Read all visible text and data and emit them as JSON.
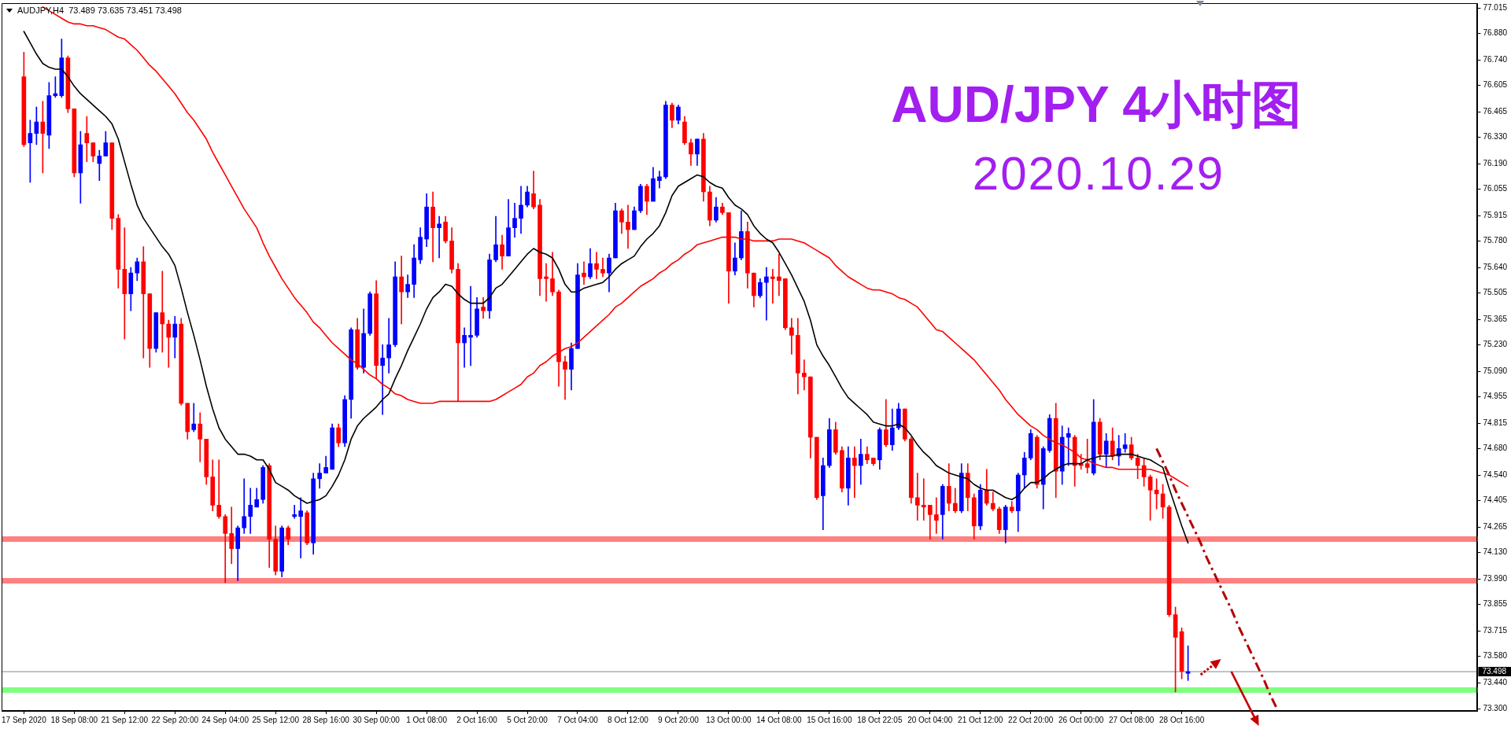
{
  "chart_data": {
    "type": "candlestick",
    "title": "AUD/JPY 4小时图",
    "subtitle": "2020.10.29",
    "annotations": [
      "AUDJPY,H4  73.489 73.635 73.451 73.498"
    ],
    "categories": [
      "17 Sep 2020",
      null,
      null,
      null,
      null,
      null,
      null,
      null,
      "18 Sep 08:00",
      null,
      null,
      null,
      null,
      null,
      null,
      null,
      "21 Sep 12:00",
      null,
      null,
      null,
      null,
      null,
      null,
      null,
      "22 Sep 20:00",
      null,
      null,
      null,
      null,
      null,
      null,
      null,
      "24 Sep 04:00",
      null,
      null,
      null,
      null,
      null,
      null,
      null,
      "25 Sep 12:00",
      null,
      null,
      null,
      null,
      null,
      null,
      null,
      "28 Sep 16:00",
      null,
      null,
      null,
      null,
      null,
      null,
      null,
      "30 Sep 00:00",
      null,
      null,
      null,
      null,
      null,
      null,
      null,
      "1 Oct 08:00",
      null,
      null,
      null,
      null,
      null,
      null,
      null,
      "2 Oct 16:00",
      null,
      null,
      null,
      null,
      null,
      null,
      null,
      "5 Oct 20:00",
      null,
      null,
      null,
      null,
      null,
      null,
      null,
      "7 Oct 04:00",
      null,
      null,
      null,
      null,
      null,
      null,
      null,
      "8 Oct 12:00",
      null,
      null,
      null,
      null,
      null,
      null,
      null,
      "9 Oct 20:00",
      null,
      null,
      null,
      null,
      null,
      null,
      null,
      "13 Oct 00:00",
      null,
      null,
      null,
      null,
      null,
      null,
      null,
      "14 Oct 08:00",
      null,
      null,
      null,
      null,
      null,
      null,
      null,
      "15 Oct 16:00",
      null,
      null,
      null,
      null,
      null,
      null,
      null,
      "18 Oct 22:05",
      null,
      null,
      null,
      null,
      null,
      null,
      null,
      "20 Oct 04:00",
      null,
      null,
      null,
      null,
      null,
      null,
      null,
      "21 Oct 12:00",
      null,
      null,
      null,
      null,
      null,
      null,
      null,
      "22 Oct 20:00",
      null,
      null,
      null,
      null,
      null,
      null,
      null,
      "26 Oct 00:00",
      null,
      null,
      null,
      null,
      null,
      null,
      null,
      "27 Oct 08:00",
      null,
      null,
      null,
      null,
      null,
      null,
      null,
      "28 Oct 16:00",
      null,
      null,
      null,
      null,
      null,
      null,
      null,
      null,
      null,
      null,
      null,
      null,
      null,
      null,
      null
    ],
    "ohlc": [
      [
        76.65,
        76.78,
        76.28,
        76.29
      ],
      [
        76.3,
        76.42,
        76.09,
        76.35
      ],
      [
        76.35,
        76.49,
        76.29,
        76.41
      ],
      [
        76.41,
        76.52,
        76.14,
        76.35
      ],
      [
        76.34,
        76.62,
        76.27,
        76.55
      ],
      [
        76.55,
        76.65,
        76.54,
        76.56
      ],
      [
        76.55,
        76.85,
        76.54,
        76.75
      ],
      [
        76.75,
        76.76,
        76.46,
        76.48
      ],
      [
        76.48,
        76.48,
        76.12,
        76.14
      ],
      [
        76.14,
        76.36,
        75.98,
        76.29
      ],
      [
        76.35,
        76.44,
        76.2,
        76.3
      ],
      [
        76.3,
        76.3,
        76.2,
        76.23
      ],
      [
        76.19,
        76.26,
        76.1,
        76.23
      ],
      [
        76.23,
        76.36,
        76.23,
        76.3
      ],
      [
        76.3,
        76.3,
        75.84,
        75.9
      ],
      [
        75.9,
        75.92,
        75.53,
        75.63
      ],
      [
        75.63,
        75.85,
        75.26,
        75.5
      ],
      [
        75.5,
        75.64,
        75.41,
        75.61
      ],
      [
        75.61,
        75.69,
        75.57,
        75.67
      ],
      [
        75.67,
        75.75,
        75.16,
        75.5
      ],
      [
        75.5,
        75.5,
        75.11,
        75.21
      ],
      [
        75.21,
        75.4,
        75.19,
        75.4
      ],
      [
        75.4,
        75.62,
        75.19,
        75.34
      ],
      [
        75.34,
        75.36,
        75.11,
        75.27
      ],
      [
        75.27,
        75.38,
        75.16,
        75.34
      ],
      [
        75.34,
        75.37,
        74.91,
        74.92
      ],
      [
        74.92,
        74.92,
        74.73,
        74.77
      ],
      [
        74.78,
        74.92,
        74.77,
        74.81
      ],
      [
        74.81,
        74.87,
        74.61,
        74.73
      ],
      [
        74.73,
        74.73,
        74.49,
        74.53
      ],
      [
        74.53,
        74.62,
        74.35,
        74.38
      ],
      [
        74.38,
        74.62,
        74.31,
        74.32
      ],
      [
        74.32,
        74.33,
        73.97,
        74.23
      ],
      [
        74.23,
        74.37,
        74.07,
        74.15
      ],
      [
        74.15,
        74.27,
        73.98,
        74.26
      ],
      [
        74.26,
        74.52,
        74.23,
        74.32
      ],
      [
        74.32,
        74.47,
        74.23,
        74.38
      ],
      [
        74.37,
        74.47,
        74.37,
        74.41
      ],
      [
        74.41,
        74.59,
        74.39,
        74.58
      ],
      [
        74.59,
        74.6,
        74.05,
        74.2
      ],
      [
        74.2,
        74.27,
        74.01,
        74.03
      ],
      [
        74.03,
        74.27,
        74.0,
        74.26
      ],
      [
        74.26,
        74.27,
        74.17,
        74.2
      ],
      [
        74.32,
        74.38,
        74.31,
        74.33
      ],
      [
        74.32,
        74.42,
        74.1,
        74.35
      ],
      [
        74.34,
        74.35,
        74.17,
        74.18
      ],
      [
        74.18,
        74.55,
        74.12,
        74.52
      ],
      [
        74.52,
        74.6,
        74.47,
        74.55
      ],
      [
        74.55,
        74.64,
        74.55,
        74.58
      ],
      [
        74.57,
        74.81,
        74.57,
        74.79
      ],
      [
        74.79,
        74.81,
        74.69,
        74.71
      ],
      [
        74.71,
        74.96,
        74.69,
        74.94
      ],
      [
        74.94,
        75.32,
        74.84,
        75.31
      ],
      [
        75.31,
        75.37,
        75.1,
        75.11
      ],
      [
        75.11,
        75.42,
        75.08,
        75.29
      ],
      [
        75.29,
        75.51,
        75.28,
        75.5
      ],
      [
        75.5,
        75.57,
        75.05,
        75.12
      ],
      [
        75.12,
        75.23,
        74.86,
        75.16
      ],
      [
        75.16,
        75.37,
        75.08,
        75.23
      ],
      [
        75.23,
        75.67,
        75.22,
        75.59
      ],
      [
        75.59,
        75.7,
        75.34,
        75.51
      ],
      [
        75.51,
        75.6,
        75.48,
        75.55
      ],
      [
        75.55,
        75.76,
        75.48,
        75.69
      ],
      [
        75.68,
        75.85,
        75.66,
        75.8
      ],
      [
        75.79,
        76.03,
        75.75,
        75.96
      ],
      [
        75.96,
        76.04,
        75.67,
        75.85
      ],
      [
        75.85,
        75.91,
        75.69,
        75.87
      ],
      [
        75.88,
        75.91,
        75.77,
        75.78
      ],
      [
        75.78,
        75.85,
        75.61,
        75.63
      ],
      [
        75.63,
        75.66,
        74.93,
        75.24
      ],
      [
        75.24,
        75.32,
        75.11,
        75.28
      ],
      [
        75.27,
        75.54,
        75.12,
        75.28
      ],
      [
        75.28,
        75.48,
        75.27,
        75.42
      ],
      [
        75.43,
        75.48,
        75.37,
        75.41
      ],
      [
        75.41,
        75.71,
        75.37,
        75.68
      ],
      [
        75.68,
        75.91,
        75.67,
        75.76
      ],
      [
        75.76,
        75.81,
        75.63,
        75.7
      ],
      [
        75.7,
        76.0,
        75.7,
        75.85
      ],
      [
        75.85,
        75.98,
        75.8,
        75.9
      ],
      [
        75.9,
        76.07,
        75.82,
        75.97
      ],
      [
        75.97,
        76.07,
        75.96,
        76.04
      ],
      [
        76.03,
        76.15,
        75.95,
        75.96
      ],
      [
        75.97,
        76.0,
        75.49,
        75.58
      ],
      [
        75.59,
        75.66,
        75.46,
        75.58
      ],
      [
        75.58,
        75.72,
        75.49,
        75.51
      ],
      [
        75.51,
        75.52,
        75.01,
        75.14
      ],
      [
        75.14,
        75.17,
        74.94,
        75.1
      ],
      [
        75.1,
        75.24,
        74.99,
        75.21
      ],
      [
        75.21,
        75.66,
        75.21,
        75.6
      ],
      [
        75.61,
        75.67,
        75.55,
        75.59
      ],
      [
        75.59,
        75.74,
        75.58,
        75.66
      ],
      [
        75.66,
        75.72,
        75.58,
        75.63
      ],
      [
        75.63,
        75.69,
        75.59,
        75.61
      ],
      [
        75.61,
        75.71,
        75.51,
        75.69
      ],
      [
        75.69,
        75.98,
        75.69,
        75.94
      ],
      [
        75.94,
        75.95,
        75.82,
        75.88
      ],
      [
        75.88,
        75.97,
        75.74,
        75.84
      ],
      [
        75.84,
        75.96,
        75.84,
        75.94
      ],
      [
        75.94,
        76.08,
        75.93,
        76.07
      ],
      [
        76.07,
        76.08,
        75.92,
        75.99
      ],
      [
        75.99,
        76.17,
        75.99,
        76.11
      ],
      [
        76.1,
        76.15,
        76.06,
        76.12
      ],
      [
        76.12,
        76.52,
        76.11,
        76.5
      ],
      [
        76.5,
        76.51,
        76.38,
        76.42
      ],
      [
        76.42,
        76.5,
        76.4,
        76.49
      ],
      [
        76.41,
        76.44,
        76.29,
        76.3
      ],
      [
        76.3,
        76.32,
        76.18,
        76.24
      ],
      [
        76.24,
        76.32,
        76.18,
        76.32
      ],
      [
        76.32,
        76.35,
        75.99,
        76.04
      ],
      [
        76.04,
        76.07,
        75.86,
        75.89
      ],
      [
        75.89,
        76.01,
        75.88,
        75.96
      ],
      [
        75.96,
        75.98,
        75.92,
        75.93
      ],
      [
        75.93,
        75.93,
        75.45,
        75.62
      ],
      [
        75.62,
        75.77,
        75.6,
        75.69
      ],
      [
        75.69,
        75.94,
        75.68,
        75.83
      ],
      [
        75.83,
        75.88,
        75.53,
        75.61
      ],
      [
        75.61,
        75.61,
        75.43,
        75.49
      ],
      [
        75.49,
        75.58,
        75.48,
        75.56
      ],
      [
        75.56,
        75.64,
        75.36,
        75.59
      ],
      [
        75.59,
        75.63,
        75.45,
        75.58
      ],
      [
        75.59,
        75.71,
        75.49,
        75.57
      ],
      [
        75.58,
        75.58,
        75.31,
        75.32
      ],
      [
        75.32,
        75.37,
        75.18,
        75.28
      ],
      [
        75.28,
        75.37,
        74.97,
        75.08
      ],
      [
        75.08,
        75.15,
        74.99,
        75.06
      ],
      [
        75.06,
        75.06,
        74.63,
        74.74
      ],
      [
        74.74,
        74.74,
        74.41,
        74.42
      ],
      [
        74.43,
        74.63,
        74.25,
        74.59
      ],
      [
        74.59,
        74.84,
        74.58,
        74.78
      ],
      [
        74.78,
        74.82,
        74.65,
        74.66
      ],
      [
        74.67,
        74.69,
        74.45,
        74.47
      ],
      [
        74.47,
        74.69,
        74.38,
        74.63
      ],
      [
        74.63,
        74.69,
        74.42,
        74.59
      ],
      [
        74.59,
        74.73,
        74.49,
        74.65
      ],
      [
        74.65,
        74.69,
        74.6,
        74.62
      ],
      [
        74.63,
        74.63,
        74.59,
        74.6
      ],
      [
        74.62,
        74.79,
        74.57,
        74.78
      ],
      [
        74.78,
        74.94,
        74.69,
        74.7
      ],
      [
        74.7,
        74.89,
        74.67,
        74.79
      ],
      [
        74.79,
        74.92,
        74.78,
        74.89
      ],
      [
        74.89,
        74.89,
        74.72,
        74.73
      ],
      [
        74.73,
        74.74,
        74.39,
        74.42
      ],
      [
        74.42,
        74.55,
        74.3,
        74.38
      ],
      [
        74.38,
        74.52,
        74.3,
        74.37
      ],
      [
        74.38,
        74.38,
        74.2,
        74.33
      ],
      [
        74.33,
        74.42,
        74.23,
        74.3
      ],
      [
        74.33,
        74.49,
        74.2,
        74.48
      ],
      [
        74.48,
        74.6,
        74.35,
        74.39
      ],
      [
        74.39,
        74.47,
        74.34,
        74.35
      ],
      [
        74.35,
        74.6,
        74.34,
        74.55
      ],
      [
        74.55,
        74.6,
        74.35,
        74.42
      ],
      [
        74.42,
        74.44,
        74.2,
        74.27
      ],
      [
        74.27,
        74.49,
        74.25,
        74.46
      ],
      [
        74.46,
        74.57,
        74.38,
        74.39
      ],
      [
        74.39,
        74.45,
        74.35,
        74.36
      ],
      [
        74.36,
        74.37,
        74.23,
        74.25
      ],
      [
        74.25,
        74.38,
        74.18,
        74.37
      ],
      [
        74.37,
        74.4,
        74.34,
        74.35
      ],
      [
        74.35,
        74.55,
        74.24,
        74.54
      ],
      [
        74.54,
        74.66,
        74.47,
        74.63
      ],
      [
        74.63,
        74.78,
        74.62,
        74.76
      ],
      [
        74.74,
        74.75,
        74.47,
        74.49
      ],
      [
        74.49,
        74.69,
        74.36,
        74.68
      ],
      [
        74.67,
        74.86,
        74.66,
        74.84
      ],
      [
        74.84,
        74.92,
        74.42,
        74.56
      ],
      [
        74.56,
        74.8,
        74.49,
        74.74
      ],
      [
        74.74,
        74.79,
        74.59,
        74.76
      ],
      [
        74.74,
        74.75,
        74.48,
        74.59
      ],
      [
        74.6,
        74.65,
        74.57,
        74.59
      ],
      [
        74.6,
        74.73,
        74.55,
        74.58
      ],
      [
        74.55,
        74.94,
        74.54,
        74.82
      ],
      [
        74.82,
        74.84,
        74.62,
        74.65
      ],
      [
        74.65,
        74.76,
        74.58,
        74.72
      ],
      [
        74.72,
        74.79,
        74.62,
        74.64
      ],
      [
        74.64,
        74.75,
        74.59,
        74.68
      ],
      [
        74.68,
        74.76,
        74.66,
        74.7
      ],
      [
        74.7,
        74.74,
        74.62,
        74.63
      ],
      [
        74.63,
        74.65,
        74.52,
        74.59
      ],
      [
        74.59,
        74.63,
        74.48,
        74.53
      ],
      [
        74.53,
        74.54,
        74.3,
        74.46
      ],
      [
        74.46,
        74.52,
        74.36,
        74.44
      ],
      [
        74.44,
        74.49,
        74.31,
        74.37
      ],
      [
        74.37,
        74.38,
        73.79,
        73.8
      ],
      [
        73.8,
        73.84,
        73.39,
        73.68
      ],
      [
        73.71,
        73.73,
        73.46,
        73.5
      ],
      [
        73.489,
        73.635,
        73.451,
        73.498
      ],
      null,
      null,
      null,
      null,
      null,
      null,
      null,
      null,
      null,
      null,
      null,
      null,
      null,
      null
    ],
    "colors": [
      "#ff0000",
      "#0000ff",
      "#0000ff",
      "#ff0000",
      "#0000ff",
      "#0000ff",
      "#0000ff",
      "#ff0000",
      "#ff0000",
      "#0000ff",
      "#ff0000",
      "#ff0000",
      "#0000ff",
      "#0000ff",
      "#ff0000",
      "#ff0000",
      "#ff0000",
      "#0000ff",
      "#0000ff",
      "#ff0000",
      "#ff0000",
      "#0000ff",
      "#ff0000",
      "#ff0000",
      "#0000ff",
      "#ff0000",
      "#ff0000",
      "#0000ff",
      "#ff0000",
      "#ff0000",
      "#ff0000",
      "#ff0000",
      "#ff0000",
      "#ff0000",
      "#0000ff",
      "#0000ff",
      "#0000ff",
      "#0000ff",
      "#0000ff",
      "#ff0000",
      "#ff0000",
      "#0000ff",
      "#ff0000",
      "#0000ff",
      "#0000ff",
      "#ff0000",
      "#0000ff",
      "#0000ff",
      "#0000ff",
      "#0000ff",
      "#ff0000",
      "#0000ff",
      "#0000ff",
      "#ff0000",
      "#0000ff",
      "#0000ff",
      "#ff0000",
      "#0000ff",
      "#0000ff",
      "#0000ff",
      "#ff0000",
      "#0000ff",
      "#0000ff",
      "#0000ff",
      "#0000ff",
      "#ff0000",
      "#0000ff",
      "#ff0000",
      "#ff0000",
      "#ff0000",
      "#0000ff",
      "#0000ff",
      "#0000ff",
      "#ff0000",
      "#0000ff",
      "#0000ff",
      "#ff0000",
      "#0000ff",
      "#0000ff",
      "#0000ff",
      "#0000ff",
      "#ff0000",
      "#ff0000",
      "#ff0000",
      "#ff0000",
      "#ff0000",
      "#ff0000",
      "#0000ff",
      "#0000ff",
      "#ff0000",
      "#0000ff",
      "#ff0000",
      "#ff0000",
      "#0000ff",
      "#0000ff",
      "#ff0000",
      "#ff0000",
      "#0000ff",
      "#0000ff",
      "#ff0000",
      "#0000ff",
      "#0000ff",
      "#0000ff",
      "#ff0000",
      "#0000ff",
      "#ff0000",
      "#ff0000",
      "#0000ff",
      "#ff0000",
      "#ff0000",
      "#0000ff",
      "#ff0000",
      "#ff0000",
      "#0000ff",
      "#0000ff",
      "#ff0000",
      "#ff0000",
      "#0000ff",
      "#0000ff",
      "#ff0000",
      "#ff0000",
      "#ff0000",
      "#ff0000",
      "#ff0000",
      "#ff0000",
      "#ff0000",
      "#ff0000",
      "#0000ff",
      "#0000ff",
      "#ff0000",
      "#ff0000",
      "#0000ff",
      "#ff0000",
      "#0000ff",
      "#ff0000",
      "#ff0000",
      "#0000ff",
      "#ff0000",
      "#0000ff",
      "#0000ff",
      "#ff0000",
      "#ff0000",
      "#ff0000",
      "#ff0000",
      "#ff0000",
      "#ff0000",
      "#0000ff",
      "#ff0000",
      "#ff0000",
      "#0000ff",
      "#ff0000",
      "#ff0000",
      "#0000ff",
      "#ff0000",
      "#ff0000",
      "#ff0000",
      "#0000ff",
      "#ff0000",
      "#0000ff",
      "#0000ff",
      "#0000ff",
      "#ff0000",
      "#0000ff",
      "#0000ff",
      "#ff0000",
      "#0000ff",
      "#0000ff",
      "#ff0000",
      "#ff0000",
      "#ff0000",
      "#0000ff",
      "#ff0000",
      "#0000ff",
      "#ff0000",
      "#0000ff",
      "#0000ff",
      "#ff0000",
      "#ff0000",
      "#ff0000",
      "#ff0000",
      "#ff0000",
      "#ff0000",
      "#ff0000",
      "#ff0000",
      "#ff0000",
      "#0000ff",
      null,
      null,
      null,
      null,
      null,
      null,
      null,
      null,
      null,
      null,
      null,
      null,
      null,
      null
    ],
    "series": [
      {
        "type": "line",
        "color": "#000000",
        "values": [
          76.89,
          76.83,
          76.77,
          76.72,
          76.7,
          76.69,
          76.69,
          76.65,
          76.6,
          76.56,
          76.53,
          76.5,
          76.47,
          76.44,
          76.4,
          76.32,
          76.2,
          76.08,
          75.97,
          75.9,
          75.85,
          75.8,
          75.75,
          75.71,
          75.65,
          75.53,
          75.4,
          75.28,
          75.15,
          75.01,
          74.89,
          74.79,
          74.73,
          74.69,
          74.65,
          74.65,
          74.64,
          74.62,
          74.62,
          74.57,
          74.5,
          74.48,
          74.46,
          74.43,
          74.41,
          74.39,
          74.4,
          74.41,
          74.43,
          74.48,
          74.54,
          74.62,
          74.73,
          74.8,
          74.84,
          74.87,
          74.9,
          74.94,
          74.97,
          75.05,
          75.12,
          75.2,
          75.27,
          75.34,
          75.42,
          75.48,
          75.51,
          75.55,
          75.54,
          75.5,
          75.47,
          75.45,
          75.45,
          75.45,
          75.48,
          75.53,
          75.55,
          75.59,
          75.63,
          75.67,
          75.71,
          75.74,
          75.72,
          75.71,
          75.69,
          75.63,
          75.55,
          75.51,
          75.51,
          75.53,
          75.54,
          75.55,
          75.56,
          75.59,
          75.63,
          75.66,
          75.68,
          75.7,
          75.75,
          75.79,
          75.82,
          75.86,
          75.93,
          76.02,
          76.07,
          76.09,
          76.11,
          76.13,
          76.12,
          76.09,
          76.07,
          76.06,
          76.01,
          75.97,
          75.95,
          75.92,
          75.86,
          75.82,
          75.79,
          75.77,
          75.72,
          75.66,
          75.6,
          75.53,
          75.46,
          75.36,
          75.23,
          75.17,
          75.12,
          75.06,
          75.0,
          74.95,
          74.92,
          74.89,
          74.86,
          74.82,
          74.81,
          74.8,
          74.8,
          74.81,
          74.79,
          74.75,
          74.7,
          74.66,
          74.63,
          74.59,
          74.57,
          74.55,
          74.54,
          74.53,
          74.52,
          74.49,
          74.47,
          74.46,
          74.46,
          74.44,
          74.42,
          74.41,
          74.43,
          74.47,
          74.5,
          74.5,
          74.52,
          74.55,
          74.57,
          74.59,
          74.6,
          74.6,
          74.6,
          74.62,
          74.63,
          74.64,
          74.64,
          74.64,
          74.65,
          74.65,
          74.65,
          74.64,
          74.63,
          74.62,
          74.6,
          74.58,
          74.47,
          74.37,
          74.27,
          74.18,
          null,
          null,
          null,
          null,
          null,
          null,
          null,
          null,
          null,
          null,
          null,
          null,
          null,
          null
        ]
      },
      {
        "type": "line",
        "color": "#ff0000",
        "values": [
          null,
          null,
          null,
          77.02,
          77.0,
          76.98,
          76.96,
          76.94,
          76.93,
          76.93,
          76.92,
          76.92,
          76.91,
          76.9,
          76.88,
          76.86,
          76.85,
          76.82,
          76.79,
          76.75,
          76.71,
          76.68,
          76.64,
          76.6,
          76.56,
          76.51,
          76.46,
          76.42,
          76.37,
          76.32,
          76.25,
          76.19,
          76.13,
          76.07,
          76.01,
          75.95,
          75.9,
          75.85,
          75.77,
          75.7,
          75.64,
          75.58,
          75.53,
          75.48,
          75.44,
          75.4,
          75.35,
          75.32,
          75.28,
          75.24,
          75.21,
          75.18,
          75.15,
          75.13,
          75.1,
          75.07,
          75.05,
          75.02,
          75.0,
          74.97,
          74.96,
          74.94,
          74.93,
          74.92,
          74.92,
          74.92,
          74.93,
          74.93,
          74.93,
          74.93,
          74.93,
          74.93,
          74.93,
          74.93,
          74.93,
          74.94,
          74.96,
          74.98,
          75.0,
          75.02,
          75.06,
          75.08,
          75.12,
          75.14,
          75.17,
          75.19,
          75.21,
          75.22,
          75.24,
          75.27,
          75.3,
          75.33,
          75.36,
          75.39,
          75.43,
          75.45,
          75.48,
          75.51,
          75.54,
          75.56,
          75.58,
          75.61,
          75.63,
          75.66,
          75.68,
          75.71,
          75.73,
          75.76,
          75.77,
          75.78,
          75.79,
          75.8,
          75.8,
          75.8,
          75.79,
          75.79,
          75.78,
          75.78,
          75.78,
          75.78,
          75.79,
          75.79,
          75.79,
          75.78,
          75.77,
          75.75,
          75.73,
          75.71,
          75.69,
          75.65,
          75.62,
          75.59,
          75.57,
          75.55,
          75.53,
          75.52,
          75.52,
          75.51,
          75.5,
          75.48,
          75.47,
          75.45,
          75.43,
          75.39,
          75.35,
          75.31,
          75.3,
          75.27,
          75.24,
          75.21,
          75.18,
          75.15,
          75.11,
          75.07,
          75.03,
          74.99,
          74.94,
          74.9,
          74.86,
          74.83,
          74.8,
          74.78,
          74.75,
          74.73,
          74.71,
          74.7,
          74.68,
          74.66,
          74.63,
          74.62,
          74.6,
          74.59,
          74.58,
          74.58,
          74.57,
          74.57,
          74.57,
          74.57,
          74.57,
          74.57,
          74.56,
          74.55,
          74.54,
          74.52,
          74.5,
          74.48,
          null,
          null,
          null,
          null,
          null,
          null,
          null,
          null,
          null,
          null,
          null,
          null,
          null,
          null
        ]
      },
      {
        "type": "line",
        "color": "#b40000",
        "line_style": "dashed",
        "values": [
          null,
          null,
          null,
          null,
          null,
          null,
          null,
          null,
          null,
          null,
          null,
          null,
          null,
          null,
          null,
          null,
          null,
          null,
          null,
          null,
          null,
          null,
          null,
          null,
          null,
          null,
          null,
          null,
          null,
          null,
          null,
          null,
          null,
          null,
          null,
          null,
          null,
          null,
          null,
          null,
          null,
          null,
          null,
          null,
          null,
          null,
          null,
          null,
          null,
          null,
          null,
          null,
          null,
          null,
          null,
          null,
          null,
          null,
          null,
          null,
          null,
          null,
          null,
          null,
          null,
          null,
          null,
          null,
          null,
          null,
          null,
          null,
          null,
          null,
          null,
          null,
          null,
          null,
          null,
          null,
          null,
          null,
          null,
          null,
          null,
          null,
          null,
          null,
          null,
          null,
          null,
          null,
          null,
          null,
          null,
          null,
          null,
          null,
          null,
          null,
          null,
          null,
          null,
          null,
          null,
          null,
          null,
          null,
          null,
          null,
          null,
          null,
          null,
          null,
          null,
          null,
          null,
          null,
          null,
          null,
          null,
          null,
          null,
          null,
          null,
          null,
          null,
          null,
          null,
          null,
          null,
          null,
          null,
          null,
          null,
          null,
          null,
          null,
          null,
          null,
          null,
          null,
          null,
          null,
          null,
          null,
          null,
          null,
          null,
          null,
          null,
          null,
          null,
          null,
          null,
          null,
          null,
          null,
          null,
          null,
          null,
          null,
          null,
          null,
          null,
          null,
          null,
          null,
          null,
          null,
          null,
          null,
          null,
          null,
          null,
          null,
          null,
          null,
          null,
          null,
          74.68,
          74.61,
          74.54,
          74.46,
          74.39,
          74.32,
          74.25,
          74.18,
          74.1,
          74.03,
          73.96,
          73.89,
          73.82,
          73.74,
          73.67,
          73.6,
          73.53,
          73.46,
          73.38,
          73.31
        ]
      }
    ],
    "ylim": [
      73.29,
      77.04
    ],
    "yticks": [
      {
        "value": 73.3,
        "label": "73.300"
      },
      {
        "value": 73.44,
        "label": "73.440"
      },
      {
        "value": 73.58,
        "label": "73.580"
      },
      73.715,
      73.855,
      {
        "value": 73.99,
        "label": "73.990"
      },
      {
        "value": 74.13,
        "label": "74.130"
      },
      74.265,
      74.405,
      {
        "value": 74.54,
        "label": "74.540"
      },
      {
        "value": 74.68,
        "label": "74.680"
      },
      74.815,
      74.955,
      {
        "value": 75.09,
        "label": "75.090"
      },
      {
        "value": 75.23,
        "label": "75.230"
      },
      75.365,
      75.505,
      {
        "value": 75.64,
        "label": "75.640"
      },
      {
        "value": 75.78,
        "label": "75.780"
      },
      75.915,
      76.055,
      {
        "value": 76.19,
        "label": "76.190"
      },
      {
        "value": 76.33,
        "label": "76.330"
      },
      76.465,
      76.605,
      {
        "value": 76.74,
        "label": "76.740"
      },
      {
        "value": 76.88,
        "label": "76.880"
      },
      77.015
    ],
    "ref_lines": [
      {
        "axis": "y",
        "value": 74.2,
        "color": "#ff8080"
      },
      {
        "axis": "y",
        "value": 73.98,
        "color": "#ff8080"
      },
      {
        "axis": "y",
        "value": 73.4,
        "color": "#80ff80"
      },
      {
        "axis": "y",
        "value": 73.498,
        "label": "73.498",
        "color": "#778899"
      }
    ],
    "marker": "none"
  }
}
